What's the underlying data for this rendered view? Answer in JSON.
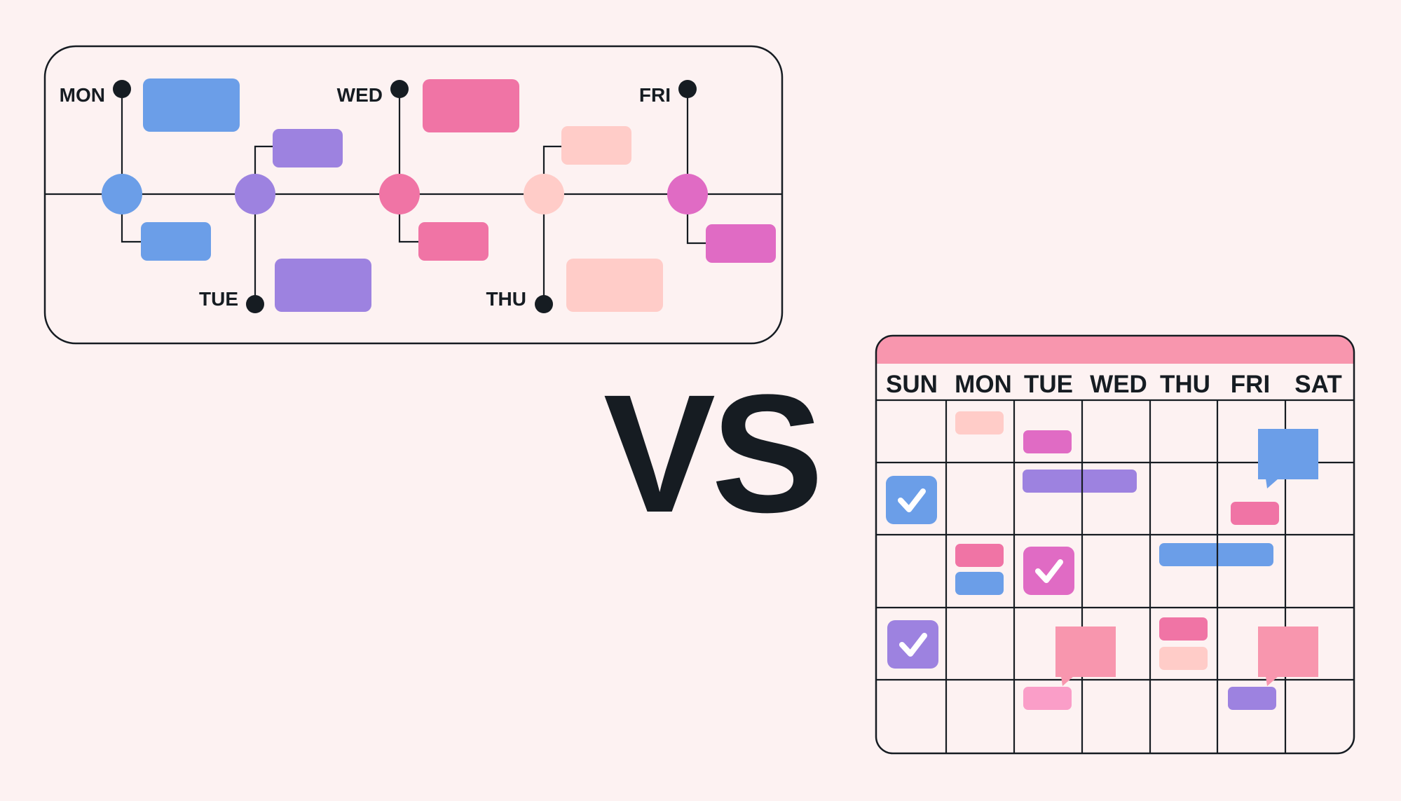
{
  "colors": {
    "background": "#fdf2f2",
    "ink": "#161c22",
    "blue": "#6b9ee8",
    "purple": "#9d82e0",
    "pink": "#f074a5",
    "peach": "#ffccc8",
    "magenta": "#e06bc4",
    "rose": "#f896ae",
    "light_pink": "#fa9ec8"
  },
  "timeline": {
    "days": [
      {
        "label": "MON",
        "color": "#6b9ee8"
      },
      {
        "label": "TUE",
        "color": "#9d82e0"
      },
      {
        "label": "WED",
        "color": "#f074a5"
      },
      {
        "label": "THU",
        "color": "#ffccc8"
      },
      {
        "label": "FRI",
        "color": "#e06bc4"
      }
    ]
  },
  "vs_label": "VS",
  "calendar": {
    "header_color": "#f896ae",
    "day_headers": [
      "SUN",
      "MON",
      "TUE",
      "WED",
      "THU",
      "FRI",
      "SAT"
    ],
    "rows": 5,
    "checkbox_icon": "checkmark-icon",
    "speech_icon": "speech-bubble-icon"
  }
}
